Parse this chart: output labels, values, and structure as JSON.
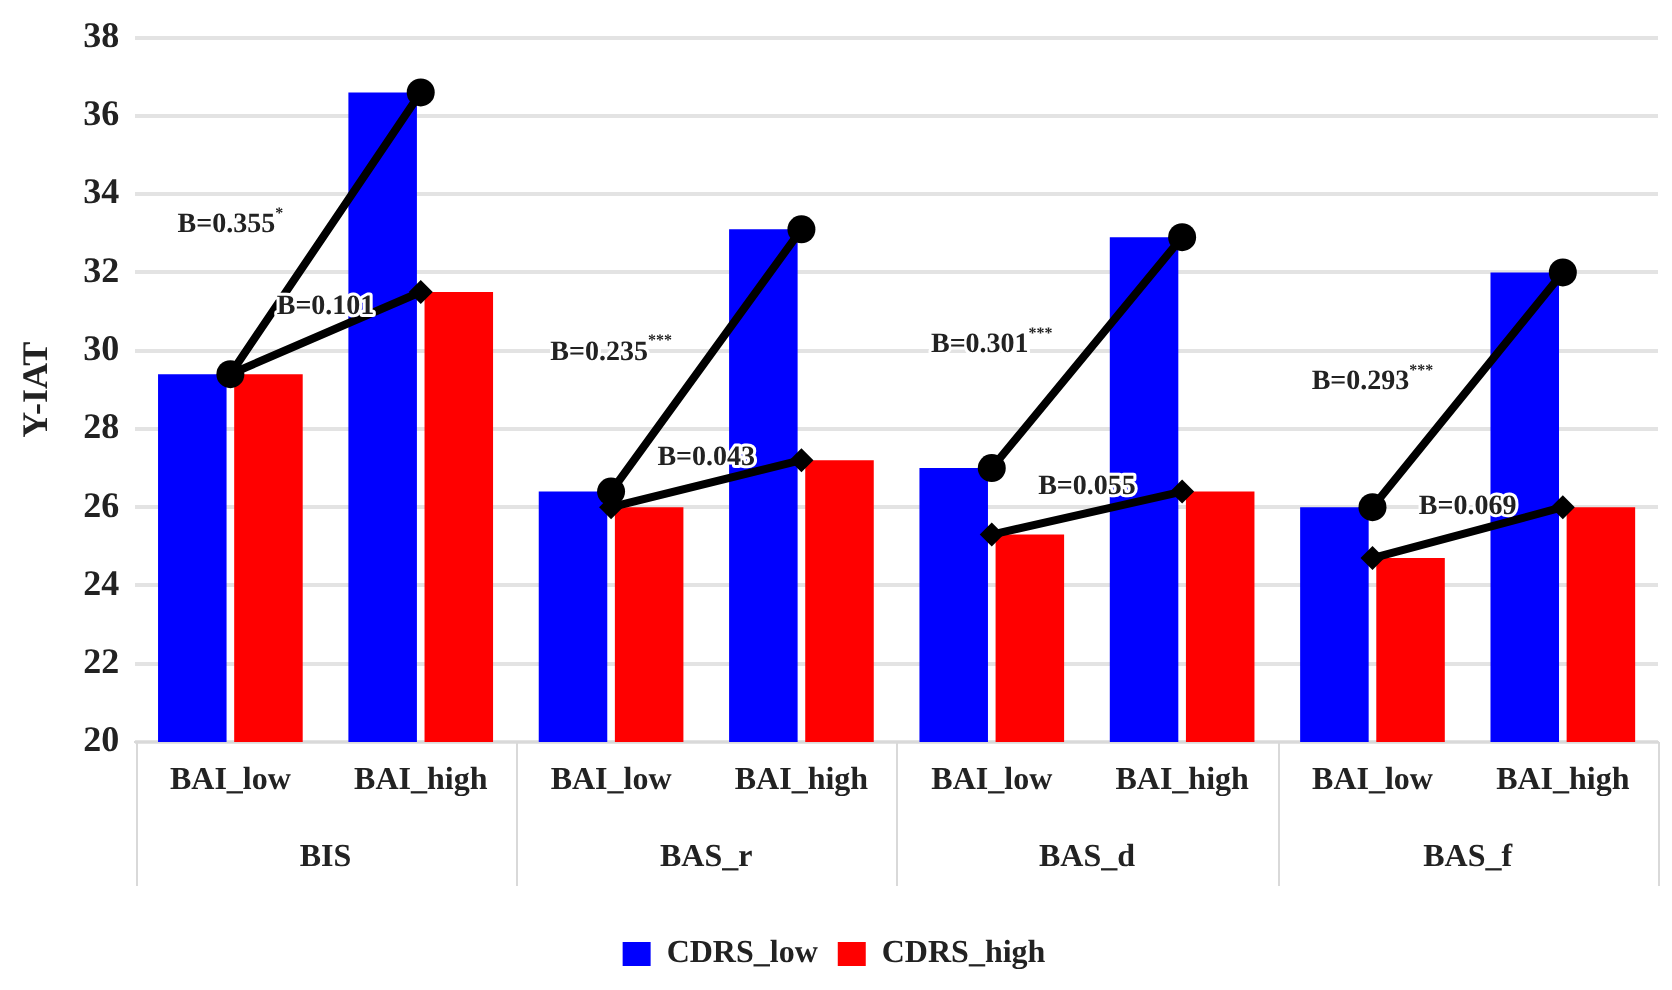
{
  "chart_data": {
    "type": "bar",
    "ylabel": "Y-IAT",
    "categories": [
      "BAI_low",
      "BAI_high",
      "BAI_low",
      "BAI_high",
      "BAI_low",
      "BAI_high",
      "BAI_low",
      "BAI_high"
    ],
    "series": [
      {
        "name": "CDRS_low",
        "color": "#0000ff",
        "values": [
          29.4,
          36.6,
          26.4,
          33.1,
          27.0,
          32.9,
          26.0,
          32.0
        ]
      },
      {
        "name": "CDRS_high",
        "color": "#ff0000",
        "values": [
          29.4,
          31.5,
          26.0,
          27.2,
          25.3,
          26.4,
          24.7,
          26.0
        ]
      },
      {
        "type": "line",
        "color": "#000000",
        "marker": "circle",
        "values": [
          29.4,
          36.6,
          null,
          null,
          null,
          null,
          null,
          null
        ]
      },
      {
        "type": "line",
        "color": "#000000",
        "marker": "diamond",
        "values": [
          29.4,
          31.5,
          null,
          null,
          null,
          null,
          null,
          null
        ]
      },
      {
        "type": "line",
        "color": "#000000",
        "marker": "circle",
        "values": [
          null,
          null,
          26.4,
          33.1,
          null,
          null,
          null,
          null
        ]
      },
      {
        "type": "line",
        "color": "#000000",
        "marker": "diamond",
        "values": [
          null,
          null,
          26.0,
          27.2,
          null,
          null,
          null,
          null
        ]
      },
      {
        "type": "line",
        "color": "#000000",
        "marker": "circle",
        "values": [
          null,
          null,
          null,
          null,
          27.0,
          32.9,
          null,
          null
        ]
      },
      {
        "type": "line",
        "color": "#000000",
        "marker": "diamond",
        "values": [
          null,
          null,
          null,
          null,
          25.3,
          26.4,
          null,
          null
        ]
      },
      {
        "type": "line",
        "color": "#000000",
        "marker": "circle",
        "values": [
          null,
          null,
          null,
          null,
          null,
          null,
          26.0,
          32.0
        ]
      },
      {
        "type": "line",
        "color": "#000000",
        "marker": "diamond",
        "values": [
          null,
          null,
          null,
          null,
          null,
          null,
          24.7,
          26.0
        ]
      }
    ],
    "annotations": [
      "B=0.355$^{*}$",
      "B=0.101",
      "B=0.235$^{***}$",
      "B=0.043",
      "B=0.301$^{***}$",
      "B=0.055",
      "B=0.293$^{***}$",
      "B=0.069",
      "BIS",
      "BAS_r",
      "BAS_d",
      "BAS_f"
    ],
    "ylim": [
      20,
      38
    ],
    "yticks": [
      20,
      22,
      24,
      26,
      28,
      30,
      32,
      34,
      36,
      38
    ],
    "grid": "y",
    "legend": "bottom"
  }
}
